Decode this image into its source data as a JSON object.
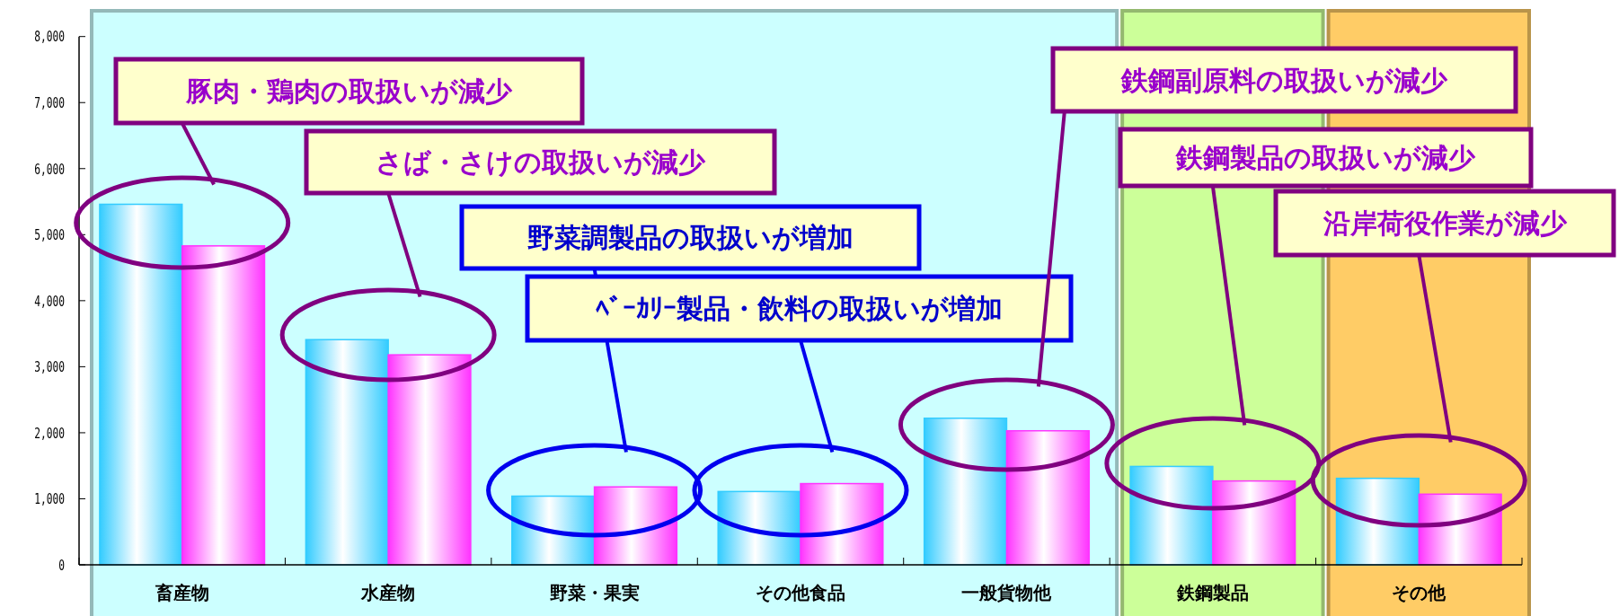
{
  "chart_data": {
    "type": "bar",
    "categories": [
      "畜産物",
      "水産物",
      "野菜・果実",
      "その他食品",
      "一般貨物他",
      "鉄鋼製品",
      "その他"
    ],
    "series": [
      {
        "color": "#33ccff",
        "values": [
          5460,
          3410,
          1040,
          1110,
          2220,
          1490,
          1310
        ]
      },
      {
        "color": "#ff33ff",
        "values": [
          4830,
          3180,
          1180,
          1230,
          2030,
          1270,
          1070
        ]
      }
    ],
    "ylim": [
      0,
      8000
    ],
    "yticks": [
      {
        "value": 0,
        "label": "0"
      },
      {
        "value": 1000,
        "label": "1,000"
      },
      {
        "value": 2000,
        "label": "2,000"
      },
      {
        "value": 3000,
        "label": "3,000"
      },
      {
        "value": 4000,
        "label": "4,000"
      },
      {
        "value": 5000,
        "label": "5,000"
      },
      {
        "value": 6000,
        "label": "6,000"
      },
      {
        "value": 7000,
        "label": "7,000"
      },
      {
        "value": 8000,
        "label": "8,000"
      }
    ],
    "grid": false,
    "bands": [
      {
        "axis": "x",
        "from": "畜産物",
        "to": "一般貨物他",
        "color": "#ccffff"
      },
      {
        "axis": "x",
        "from": "鉄鋼製品",
        "to": "鉄鋼製品",
        "color": "#ccff99"
      },
      {
        "axis": "x",
        "from": "その他",
        "to": "その他",
        "color": "#ffcc66"
      }
    ],
    "annotations": [
      "豚肉・鶏肉の取扱いが減少",
      "さば・さけの取扱いが減少",
      "野菜調製品の取扱いが増加",
      "ﾍﾞｰｶﾘｰ製品・飲料の取扱いが増加",
      "鉄鋼副原料の取扱いが減少",
      "鉄鋼製品の取扱いが減少",
      "沿岸荷役作業が減少"
    ]
  }
}
